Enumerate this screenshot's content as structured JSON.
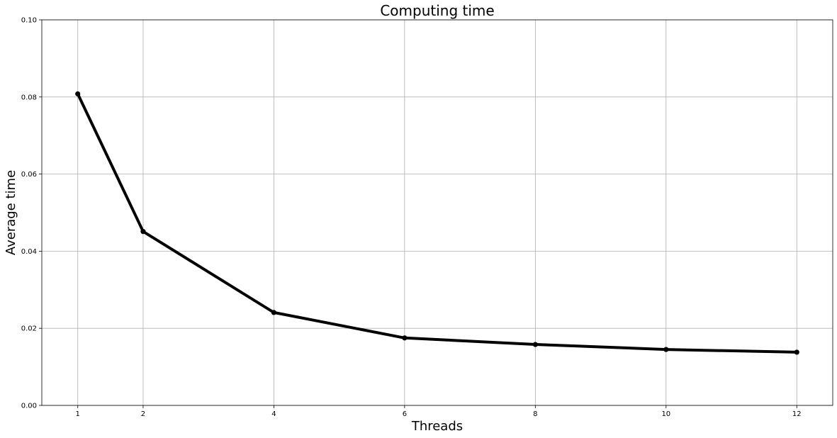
{
  "chart_data": {
    "type": "line",
    "title": "Computing time",
    "xlabel": "Threads",
    "ylabel": "Average time",
    "x": [
      1,
      2,
      4,
      6,
      8,
      10,
      12
    ],
    "series": [
      {
        "values": [
          0.0808,
          0.0451,
          0.0241,
          0.0175,
          0.0158,
          0.0145,
          0.0138
        ]
      }
    ],
    "xlim": [
      0.45,
      12.55
    ],
    "ylim": [
      0,
      0.1
    ],
    "xticks": [
      1,
      2,
      4,
      6,
      8,
      10,
      12
    ],
    "xtick_labels": [
      "1",
      "2",
      "4",
      "6",
      "8",
      "10",
      "12"
    ],
    "yticks": [
      0,
      0.02,
      0.04,
      0.06,
      0.08,
      0.1
    ],
    "ytick_labels": [
      "0.00",
      "0.02",
      "0.04",
      "0.06",
      "0.08",
      "0.10"
    ],
    "grid": true,
    "line_color": "#000000",
    "marker": "circle"
  }
}
